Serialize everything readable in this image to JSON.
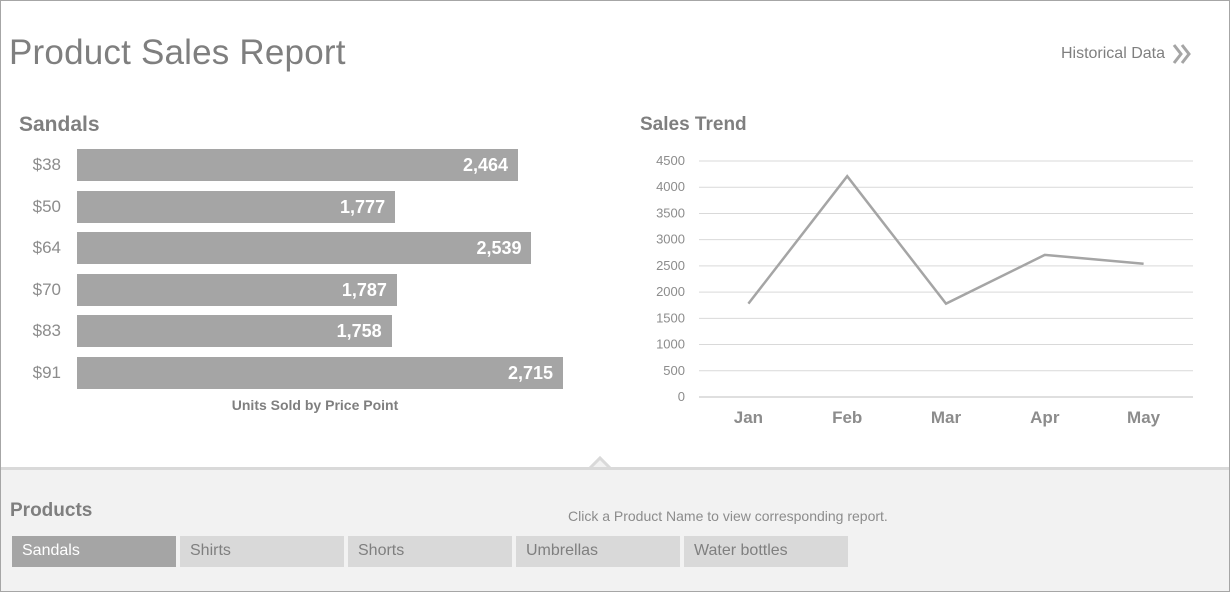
{
  "page_title": "Product Sales Report",
  "historical_link": {
    "label": "Historical Data"
  },
  "bar_chart": {
    "title": "Sandals",
    "caption": "Units Sold by Price Point",
    "categories": [
      "$38",
      "$50",
      "$64",
      "$70",
      "$83",
      "$91"
    ],
    "values": [
      2464,
      1777,
      2539,
      1787,
      1758,
      2715
    ],
    "value_labels": [
      "2,464",
      "1,777",
      "2,539",
      "1,787",
      "1,758",
      "2,715"
    ],
    "bar_color": "#a5a5a5"
  },
  "chart_data": [
    {
      "type": "bar",
      "orientation": "horizontal",
      "title": "Sandals",
      "xlabel": "Units Sold by Price Point",
      "categories": [
        "$38",
        "$50",
        "$64",
        "$70",
        "$83",
        "$91"
      ],
      "values": [
        2464,
        1777,
        2539,
        1787,
        1758,
        2715
      ]
    },
    {
      "type": "line",
      "title": "Sales Trend",
      "x": [
        "Jan",
        "Feb",
        "Mar",
        "Apr",
        "May"
      ],
      "values": [
        1780,
        4210,
        1780,
        2710,
        2540
      ],
      "ylim": [
        0,
        4500
      ],
      "yticks": [
        0,
        500,
        1000,
        1500,
        2000,
        2500,
        3000,
        3500,
        4000,
        4500
      ],
      "grid": true,
      "line_color": "#a5a5a5"
    }
  ],
  "trend_title": "Sales Trend",
  "products": {
    "title": "Products",
    "hint": "Click a Product Name to view corresponding report.",
    "tabs": [
      "Sandals",
      "Shirts",
      "Shorts",
      "Umbrellas",
      "Water bottles"
    ],
    "active": "Sandals"
  }
}
